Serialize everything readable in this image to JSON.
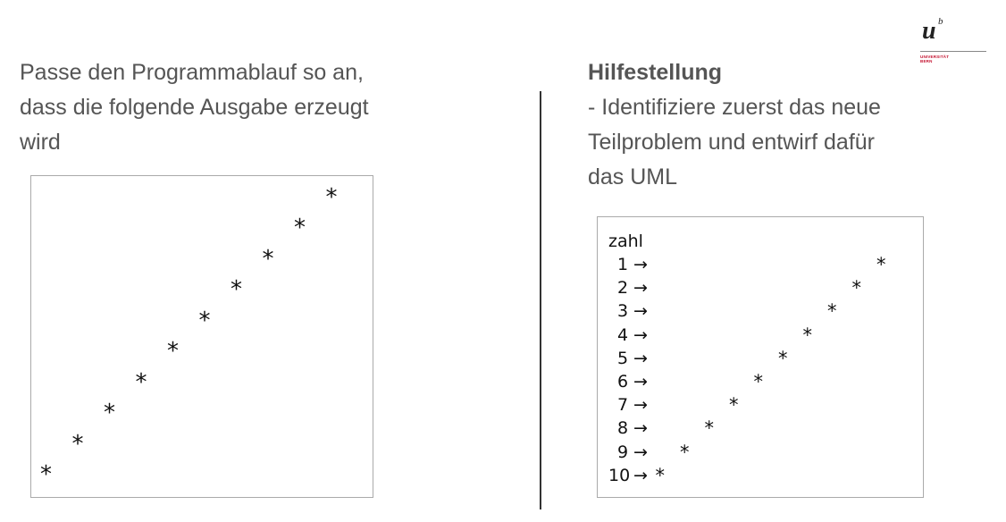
{
  "logo": {
    "letter": "u",
    "superscript": "b",
    "text_line1": "UNIVERSITÄT",
    "text_line2": "BERN"
  },
  "task": {
    "lines": [
      "Passe den Programmablauf so an,",
      "dass die folgende Ausgabe erzeugt",
      "wird"
    ]
  },
  "hint": {
    "title": "Hilfestellung",
    "lines": [
      "- Identifiziere zuerst das neue",
      "Teilproblem und entwirf dafür",
      "das UML"
    ]
  },
  "output_box": {
    "star_char": "*",
    "star_count": 10
  },
  "uml_box": {
    "header": "zahl",
    "arrow": "→",
    "star_char": "*",
    "rows": [
      {
        "num": "1"
      },
      {
        "num": "2"
      },
      {
        "num": "3"
      },
      {
        "num": "4"
      },
      {
        "num": "5"
      },
      {
        "num": "6"
      },
      {
        "num": "7"
      },
      {
        "num": "8"
      },
      {
        "num": "9"
      },
      {
        "num": "10"
      }
    ]
  }
}
